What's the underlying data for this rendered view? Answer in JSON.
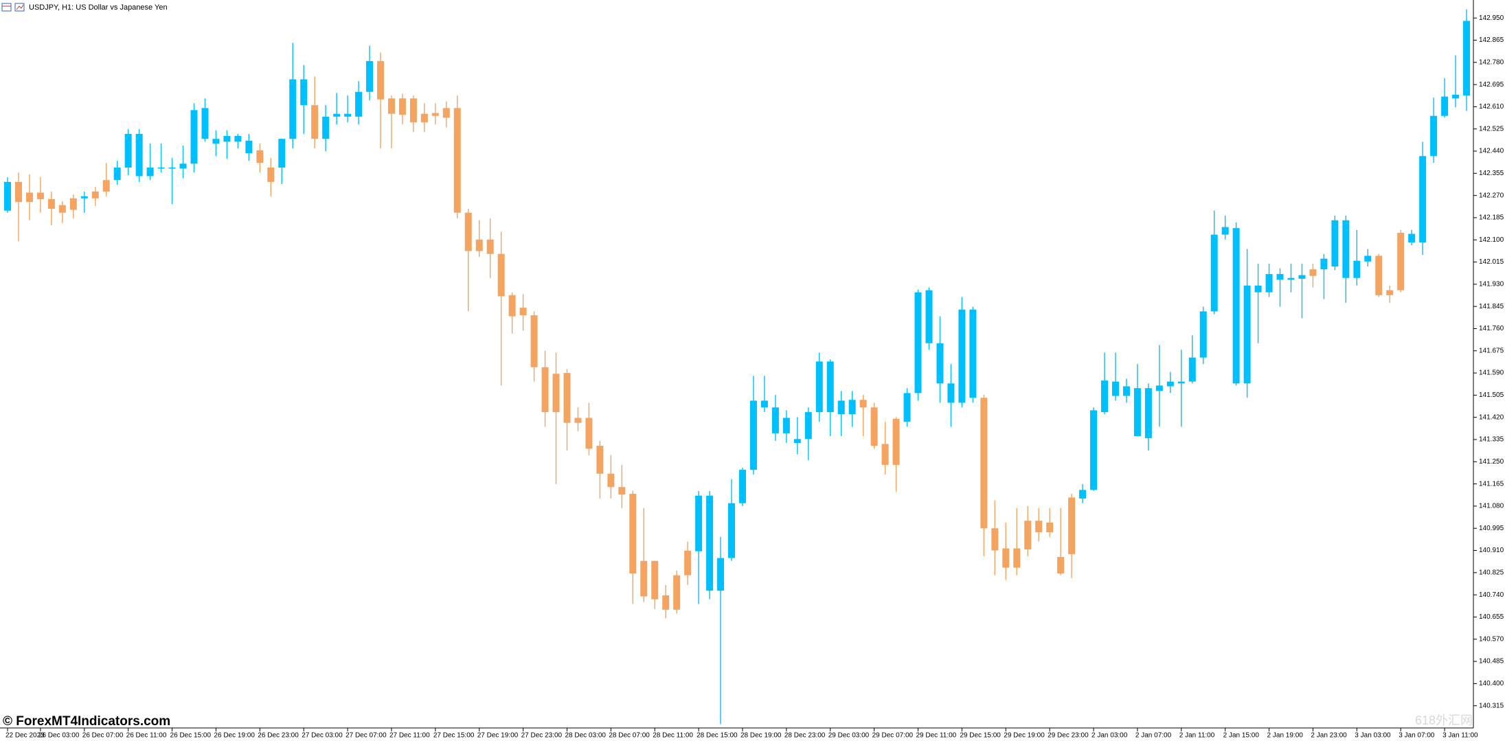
{
  "chart_data": {
    "type": "candlestick",
    "title": "USDJPY, H1:  US Dollar vs Japanese Yen",
    "watermark": "© ForexMT4Indicators.com",
    "corner_mark": "618外汇网",
    "up_color": "#00bfff",
    "down_color": "#f4a460",
    "ylim": [
      140.23,
      142.99
    ],
    "yticks": [
      {
        "value": 142.95,
        "label": "142.950"
      },
      142.865,
      {
        "value": 142.78,
        "label": "142.780"
      },
      142.695,
      {
        "value": 142.61,
        "label": "142.610"
      },
      142.525,
      {
        "value": 142.44,
        "label": "142.440"
      },
      142.355,
      {
        "value": 142.27,
        "label": "142.270"
      },
      142.185,
      {
        "value": 142.1,
        "label": "142.100"
      },
      142.015,
      {
        "value": 141.93,
        "label": "141.930"
      },
      141.845,
      {
        "value": 141.76,
        "label": "141.760"
      },
      141.675,
      {
        "value": 141.59,
        "label": "141.590"
      },
      141.505,
      {
        "value": 141.42,
        "label": "141.420"
      },
      141.335,
      {
        "value": 141.25,
        "label": "141.250"
      },
      141.165,
      {
        "value": 141.08,
        "label": "141.080"
      },
      140.995,
      {
        "value": 140.91,
        "label": "140.910"
      },
      140.825,
      {
        "value": 140.74,
        "label": "140.740"
      },
      140.655,
      {
        "value": 140.57,
        "label": "140.570"
      },
      140.485,
      {
        "value": 140.4,
        "label": "140.400"
      },
      140.315
    ],
    "categories": [
      "22 Dec 2023",
      null,
      null,
      "26 Dec 03:00",
      null,
      null,
      null,
      "26 Dec 07:00",
      null,
      null,
      null,
      "26 Dec 11:00",
      null,
      null,
      null,
      "26 Dec 15:00",
      null,
      null,
      null,
      "26 Dec 19:00",
      null,
      null,
      null,
      "26 Dec 23:00",
      null,
      null,
      null,
      "27 Dec 03:00",
      null,
      null,
      null,
      "27 Dec 07:00",
      null,
      null,
      null,
      "27 Dec 11:00",
      null,
      null,
      null,
      "27 Dec 15:00",
      null,
      null,
      null,
      "27 Dec 19:00",
      null,
      null,
      null,
      "27 Dec 23:00",
      null,
      null,
      null,
      "28 Dec 03:00",
      null,
      null,
      null,
      "28 Dec 07:00",
      null,
      null,
      null,
      "28 Dec 11:00",
      null,
      null,
      null,
      "28 Dec 15:00",
      null,
      null,
      null,
      "28 Dec 19:00",
      null,
      null,
      null,
      "28 Dec 23:00",
      null,
      null,
      null,
      "29 Dec 03:00",
      null,
      null,
      null,
      "29 Dec 07:00",
      null,
      null,
      null,
      "29 Dec 11:00",
      null,
      null,
      null,
      "29 Dec 15:00",
      null,
      null,
      null,
      "29 Dec 19:00",
      null,
      null,
      null,
      "29 Dec 23:00",
      null,
      null,
      null,
      "2 Jan 03:00",
      null,
      null,
      null,
      "2 Jan 07:00",
      null,
      null,
      null,
      "2 Jan 11:00",
      null,
      null,
      null,
      "2 Jan 15:00",
      null,
      null,
      null,
      "2 Jan 19:00",
      null,
      null,
      null,
      "2 Jan 23:00",
      null,
      null,
      null,
      "3 Jan 03:00",
      null,
      null,
      null,
      "3 Jan 07:00",
      null,
      null,
      null,
      "3 Jan 11:00",
      null,
      null
    ],
    "open": [
      142.212,
      142.322,
      142.281,
      142.281,
      142.256,
      142.233,
      142.259,
      142.259,
      142.285,
      142.329,
      142.329,
      142.377,
      142.344,
      142.344,
      142.373,
      142.373,
      142.373,
      142.392,
      142.487,
      142.469,
      142.476,
      142.476,
      142.432,
      142.443,
      142.377,
      142.377,
      142.487,
      142.616,
      142.616,
      142.487,
      142.572,
      142.572,
      142.572,
      142.667,
      142.785,
      142.642,
      142.642,
      142.642,
      142.583,
      142.586,
      142.605,
      142.605,
      142.204,
      142.101,
      142.101,
      142.046,
      141.888,
      141.84,
      141.811,
      141.612,
      141.587,
      141.59,
      141.418,
      141.418,
      141.311,
      141.204,
      141.153,
      141.127,
      140.87,
      140.87,
      140.738,
      140.815,
      140.909,
      140.907,
      140.756,
      140.756,
      140.881,
      141.091,
      141.219,
      141.458,
      141.359,
      141.359,
      141.322,
      141.337,
      141.44,
      141.44,
      141.432,
      141.432,
      141.487,
      141.458,
      141.318,
      141.414,
      141.403,
      141.513,
      141.704,
      141.55,
      141.476,
      141.476,
      141.495,
      141.495,
      140.995,
      140.918,
      140.918,
      141.024,
      141.024,
      141.017,
      140.885,
      141.113,
      141.109,
      141.142,
      141.44,
      141.502,
      141.502,
      141.348,
      141.34,
      141.521,
      141.539,
      141.55,
      141.557,
      141.649,
      141.826,
      142.12,
      141.55,
      141.55,
      141.899,
      141.899,
      141.947,
      141.947,
      141.951,
      141.987,
      141.987,
      141.998,
      141.954,
      141.954,
      142.017,
      142.039,
      141.907,
      142.127,
      142.09,
      142.09,
      142.421,
      142.575,
      142.642,
      142.653
    ],
    "high": [
      142.34,
      142.358,
      142.351,
      142.34,
      142.285,
      142.248,
      142.274,
      142.285,
      142.303,
      142.395,
      142.403,
      142.524,
      142.524,
      142.469,
      142.469,
      142.414,
      142.461,
      142.623,
      142.642,
      142.52,
      142.52,
      142.506,
      142.506,
      142.469,
      142.414,
      142.487,
      142.855,
      142.77,
      142.726,
      142.616,
      142.663,
      142.653,
      142.708,
      142.844,
      142.818,
      142.653,
      142.66,
      142.653,
      142.623,
      142.623,
      142.63,
      142.653,
      142.219,
      142.175,
      142.182,
      142.131,
      141.899,
      141.892,
      141.826,
      141.675,
      141.668,
      141.605,
      141.458,
      141.476,
      141.33,
      141.275,
      141.238,
      141.138,
      141.072,
      140.87,
      140.778,
      140.833,
      140.944,
      141.138,
      141.138,
      140.962,
      141.183,
      141.227,
      141.579,
      141.579,
      141.506,
      141.447,
      141.421,
      141.458,
      141.668,
      141.642,
      141.521,
      141.521,
      141.506,
      141.476,
      141.403,
      141.421,
      141.532,
      141.91,
      141.918,
      141.807,
      141.624,
      141.881,
      141.844,
      141.506,
      141.102,
      141.017,
      141.072,
      141.08,
      141.072,
      141.072,
      141.072,
      141.127,
      141.164,
      141.458,
      141.668,
      141.668,
      141.568,
      141.624,
      141.55,
      141.697,
      141.594,
      141.679,
      141.734,
      141.844,
      142.212,
      142.193,
      142.167,
      142.065,
      142.009,
      142.009,
      141.991,
      142.009,
      142.009,
      142.009,
      142.046,
      142.193,
      142.193,
      142.138,
      142.065,
      142.046,
      141.925,
      142.138,
      142.138,
      142.476,
      142.645,
      142.719,
      142.807,
      142.983
    ],
    "low": [
      142.204,
      142.094,
      142.175,
      142.204,
      142.156,
      142.164,
      142.182,
      142.204,
      142.23,
      142.267,
      142.311,
      142.348,
      142.322,
      142.329,
      142.358,
      142.237,
      142.336,
      142.358,
      142.476,
      142.421,
      142.41,
      142.45,
      142.403,
      142.358,
      142.267,
      142.314,
      142.45,
      142.506,
      142.45,
      142.439,
      142.542,
      142.55,
      142.542,
      142.634,
      142.45,
      142.45,
      142.542,
      142.513,
      142.513,
      142.542,
      142.531,
      142.182,
      141.826,
      142.035,
      141.954,
      141.542,
      141.741,
      141.752,
      141.557,
      141.384,
      141.164,
      141.293,
      141.367,
      141.275,
      141.109,
      141.109,
      141.072,
      140.705,
      140.712,
      140.686,
      140.65,
      140.668,
      140.778,
      140.705,
      140.723,
      140.245,
      140.87,
      141.08,
      141.201,
      141.44,
      141.33,
      141.322,
      141.278,
      141.256,
      141.403,
      141.348,
      141.348,
      141.384,
      141.348,
      141.3,
      141.201,
      141.135,
      141.384,
      141.484,
      141.679,
      141.476,
      141.384,
      141.458,
      141.476,
      140.888,
      140.815,
      140.797,
      140.815,
      140.888,
      140.944,
      140.962,
      140.815,
      140.804,
      141.091,
      141.138,
      141.432,
      141.484,
      141.476,
      141.348,
      141.293,
      141.384,
      141.513,
      141.384,
      141.55,
      141.624,
      141.815,
      142.101,
      141.542,
      141.495,
      141.704,
      141.881,
      141.844,
      141.899,
      141.8,
      141.918,
      141.873,
      141.984,
      141.859,
      141.925,
      141.998,
      141.881,
      141.859,
      141.899,
      142.079,
      142.042,
      142.395,
      142.568,
      142.608,
      142.594
    ],
    "close": [
      142.322,
      142.245,
      142.245,
      142.256,
      142.219,
      142.204,
      142.215,
      142.267,
      142.259,
      142.285,
      142.377,
      142.506,
      142.506,
      142.377,
      142.377,
      142.377,
      142.392,
      142.597,
      142.605,
      142.487,
      142.498,
      142.498,
      142.48,
      142.395,
      142.322,
      142.487,
      142.715,
      142.715,
      142.487,
      142.572,
      142.583,
      142.583,
      142.667,
      142.785,
      142.638,
      142.583,
      142.579,
      142.55,
      142.55,
      142.575,
      142.568,
      142.204,
      142.057,
      142.057,
      142.046,
      141.884,
      141.807,
      141.811,
      141.612,
      141.44,
      141.44,
      141.399,
      141.399,
      141.3,
      141.204,
      141.153,
      141.124,
      140.822,
      140.734,
      140.723,
      140.683,
      140.683,
      140.815,
      141.12,
      141.12,
      140.881,
      141.091,
      141.219,
      141.484,
      141.484,
      141.458,
      141.418,
      141.337,
      141.44,
      141.634,
      141.634,
      141.484,
      141.487,
      141.458,
      141.311,
      141.238,
      141.238,
      141.513,
      141.899,
      141.907,
      141.704,
      141.55,
      141.833,
      141.833,
      140.995,
      140.91,
      140.844,
      140.844,
      140.914,
      140.98,
      140.98,
      140.822,
      140.896,
      141.142,
      141.447,
      141.561,
      141.557,
      141.539,
      141.532,
      141.532,
      141.542,
      141.557,
      141.557,
      141.649,
      141.826,
      142.12,
      142.149,
      142.145,
      141.925,
      141.925,
      141.969,
      141.969,
      141.954,
      141.965,
      141.962,
      142.028,
      142.175,
      142.175,
      142.02,
      142.039,
      141.888,
      141.888,
      141.907,
      142.123,
      142.421,
      142.575,
      142.649,
      142.656,
      142.939
    ]
  }
}
